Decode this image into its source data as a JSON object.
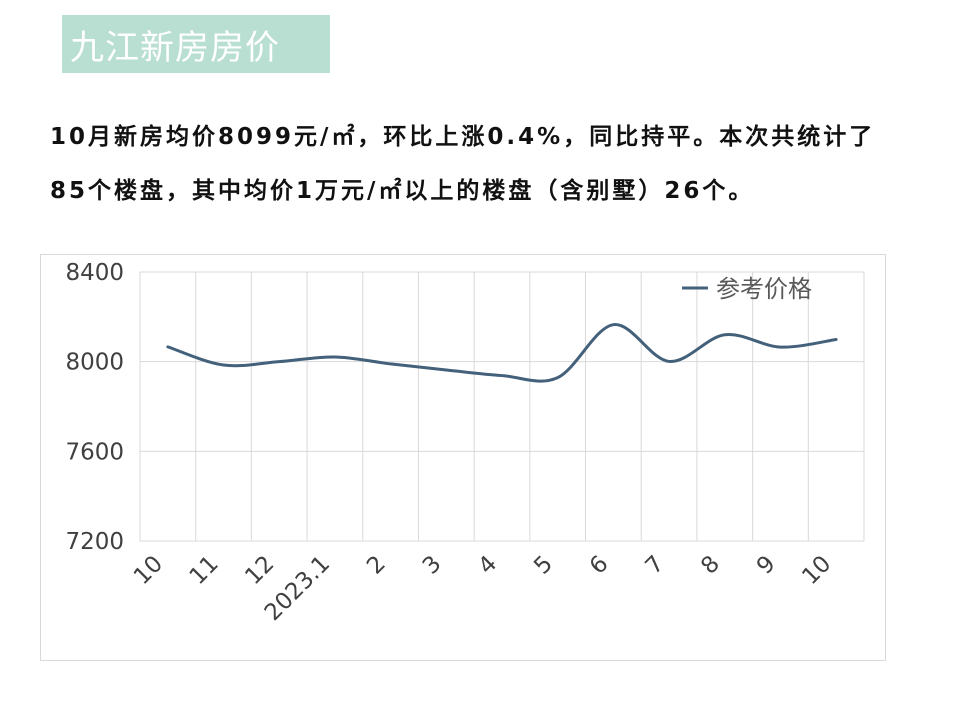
{
  "header": {
    "title": "九江新房房价"
  },
  "summary": {
    "text": "10月新房均价8099元/㎡，环比上涨0.4%，同比持平。本次共统计了85个楼盘，其中均价1万元/㎡以上的楼盘（含别墅）26个。"
  },
  "colors": {
    "title_bg": "#b9dfd2",
    "line": "#44617b",
    "grid": "#d9d9d9"
  },
  "chart_data": {
    "type": "line",
    "categories": [
      "10",
      "11",
      "12",
      "2023.1",
      "2",
      "3",
      "4",
      "5",
      "6",
      "7",
      "8",
      "9",
      "10"
    ],
    "series": [
      {
        "name": "参考价格",
        "values": [
          8066,
          7985,
          8000,
          8021,
          7990,
          7963,
          7938,
          7929,
          8165,
          8001,
          8120,
          8065,
          8099
        ]
      }
    ],
    "ylim": [
      7200,
      8400
    ],
    "yticks": [
      7200,
      7600,
      8000,
      8400
    ],
    "grid": true,
    "legend": "top-right",
    "xlabel_rotation": "-45deg",
    "title": "",
    "xlabel": "",
    "ylabel": ""
  }
}
